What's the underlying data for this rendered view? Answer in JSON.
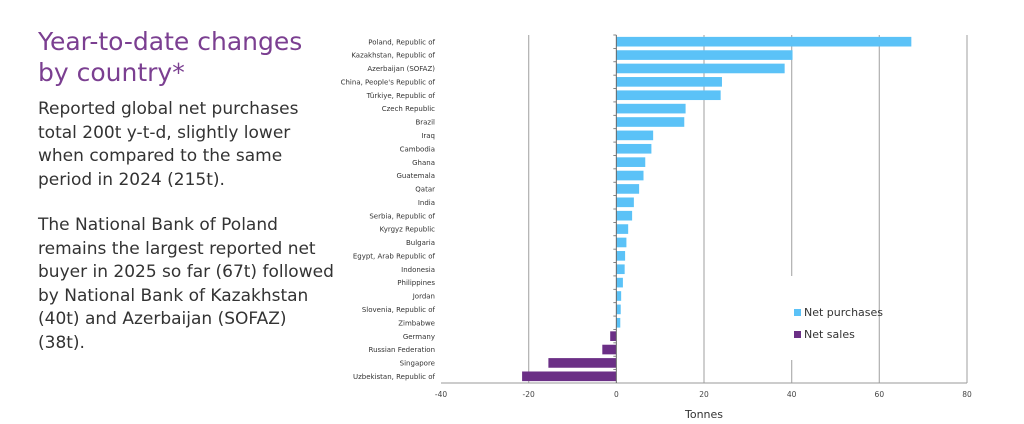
{
  "text": {
    "title": "Year-to-date changes by country*",
    "paragraphs": [
      "Reported global net purchases total 200t y-t-d, slightly lower when compared to the same period in 2024 (215t).",
      "The National Bank of Poland remains the largest reported net buyer in 2025 so far (67t) followed by National Bank of Kazakhstan (40t) and Azerbaijan (SOFAZ) (38t)."
    ]
  },
  "chart_data": {
    "type": "bar",
    "orientation": "horizontal",
    "xlabel": "Tonnes",
    "xlim": [
      -40,
      80
    ],
    "xticks": [
      -40,
      -20,
      0,
      20,
      40,
      60,
      80
    ],
    "grid": "vertical",
    "legend_position": "bottom-right",
    "colors": {
      "Net purchases": "#5bc2f7",
      "Net sales": "#6b2f86"
    },
    "legend": [
      "Net purchases",
      "Net sales"
    ],
    "categories": [
      "Poland, Republic of",
      "Kazakhstan, Republic of",
      "Azerbaijan (SOFAZ)",
      "China, People's Republic of",
      "Türkiye, Republic of",
      "Czech Republic",
      "Brazil",
      "Iraq",
      "Cambodia",
      "Ghana",
      "Guatemala",
      "Qatar",
      "India",
      "Serbia, Republic of",
      "Kyrgyz Republic",
      "Bulgaria",
      "Egypt, Arab Republic of",
      "Indonesia",
      "Philippines",
      "Jordan",
      "Slovenia, Republic of",
      "Zimbabwe",
      "Germany",
      "Russian Federation",
      "Singapore",
      "Uzbekistan, Republic of"
    ],
    "values": [
      67.3,
      40.2,
      38.4,
      24.1,
      23.8,
      15.8,
      15.5,
      8.4,
      8.0,
      6.6,
      6.2,
      5.2,
      4.0,
      3.6,
      2.7,
      2.3,
      2.0,
      1.9,
      1.5,
      1.1,
      1.0,
      0.9,
      -1.4,
      -3.2,
      -15.5,
      -21.5
    ]
  }
}
